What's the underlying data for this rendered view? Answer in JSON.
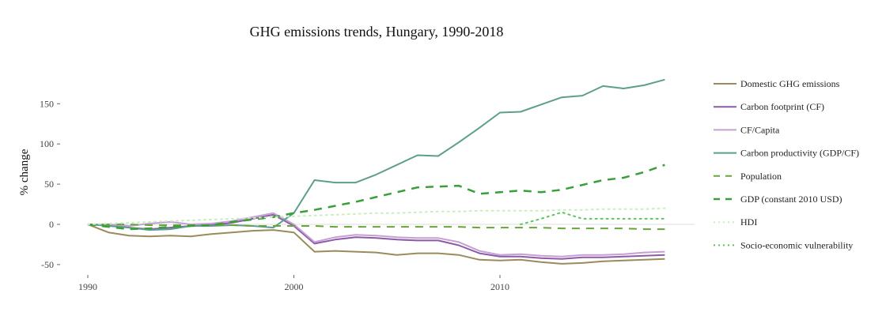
{
  "chart_data": {
    "type": "line",
    "title": "GHG emissions trends, Hungary, 1990-2018",
    "xlabel": "",
    "ylabel": "% change",
    "xlim": [
      1990,
      2018
    ],
    "ylim": [
      -60,
      200
    ],
    "x_ticks": [
      1990,
      2000,
      2010
    ],
    "y_ticks": [
      -50,
      0,
      50,
      100,
      150
    ],
    "grid": false,
    "zero_line": true,
    "legend_position": "right",
    "x": [
      1990,
      1991,
      1992,
      1993,
      1994,
      1995,
      1996,
      1997,
      1998,
      1999,
      2000,
      2001,
      2002,
      2003,
      2004,
      2005,
      2006,
      2007,
      2008,
      2009,
      2010,
      2011,
      2012,
      2013,
      2014,
      2015,
      2016,
      2017,
      2018
    ],
    "series": [
      {
        "name": "Domestic GHG emissions",
        "color": "#9a8c5a",
        "dash": "solid",
        "width": 2,
        "values": [
          0,
          -10,
          -14,
          -15,
          -14,
          -15,
          -12,
          -10,
          -8,
          -7,
          -10,
          -34,
          -33,
          -34,
          -35,
          -38,
          -36,
          -36,
          -38,
          -44,
          -45,
          -44,
          -47,
          -49,
          -48,
          -46,
          -45,
          -44,
          -43
        ]
      },
      {
        "name": "Carbon footprint (CF)",
        "color": "#8e5aa6",
        "dash": "solid",
        "width": 2,
        "values": [
          0,
          -1,
          -4,
          -6,
          -4,
          -2,
          -1,
          2,
          7,
          12,
          -2,
          -24,
          -19,
          -16,
          -17,
          -19,
          -20,
          -20,
          -26,
          -36,
          -40,
          -40,
          -42,
          -43,
          -41,
          -41,
          -40,
          -39,
          -38
        ]
      },
      {
        "name": "CF/Capita",
        "color": "#c4a0d4",
        "dash": "solid",
        "width": 2,
        "values": [
          0,
          0,
          -2,
          1,
          3,
          0,
          1,
          4,
          9,
          14,
          0,
          -22,
          -16,
          -13,
          -14,
          -16,
          -17,
          -17,
          -22,
          -33,
          -38,
          -37,
          -39,
          -40,
          -38,
          -38,
          -37,
          -35,
          -34
        ]
      },
      {
        "name": "Carbon productivity (GDP/CF)",
        "color": "#5e9e8c",
        "dash": "solid",
        "width": 2,
        "values": [
          0,
          -2,
          -4,
          -7,
          -6,
          -2,
          -2,
          -1,
          -2,
          -4,
          14,
          55,
          52,
          52,
          62,
          74,
          86,
          85,
          102,
          120,
          139,
          140,
          149,
          158,
          160,
          172,
          169,
          173,
          180
        ]
      },
      {
        "name": "Population",
        "color": "#6aa33a",
        "dash": "dashed",
        "width": 2,
        "values": [
          0,
          0,
          0,
          -1,
          -1,
          -1,
          -1,
          -1,
          -2,
          -2,
          -2,
          -2,
          -3,
          -3,
          -3,
          -3,
          -3,
          -3,
          -3,
          -4,
          -4,
          -4,
          -4,
          -5,
          -5,
          -5,
          -5,
          -6,
          -6
        ]
      },
      {
        "name": "GDP (constant 2010 USD)",
        "color": "#3a9e3a",
        "dash": "dashed",
        "width": 2.5,
        "values": [
          0,
          -3,
          -6,
          -5,
          -3,
          -2,
          -1,
          3,
          6,
          9,
          14,
          18,
          23,
          28,
          34,
          40,
          46,
          47,
          48,
          38,
          40,
          42,
          40,
          43,
          49,
          55,
          58,
          65,
          74
        ]
      },
      {
        "name": "HDI",
        "color": "#c8eec0",
        "dash": "dotted",
        "width": 2,
        "values": [
          0,
          1,
          2,
          3,
          4,
          5,
          6,
          7,
          8,
          9,
          10,
          11,
          12,
          13,
          14,
          14,
          15,
          16,
          16,
          17,
          17,
          17,
          17,
          18,
          18,
          19,
          19,
          19,
          20
        ]
      },
      {
        "name": "Socio-economic vulnerability",
        "color": "#5cc45c",
        "dash": "dotted",
        "width": 2,
        "values": [
          null,
          null,
          null,
          null,
          null,
          null,
          null,
          null,
          null,
          null,
          null,
          null,
          null,
          null,
          null,
          null,
          null,
          null,
          null,
          null,
          null,
          0,
          7,
          15,
          7,
          7,
          7,
          7,
          7
        ]
      }
    ]
  }
}
